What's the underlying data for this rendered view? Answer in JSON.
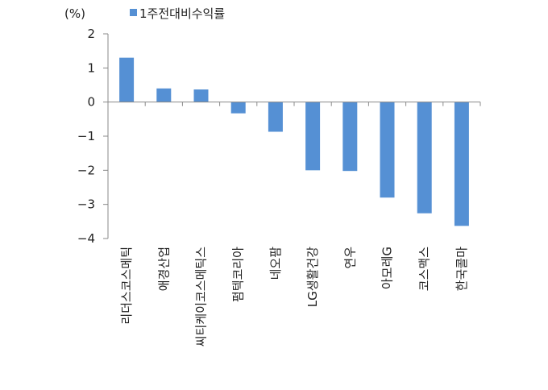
{
  "chart_data": {
    "type": "bar",
    "unit_label": "(%)",
    "categories": [
      "리더스코스메틱",
      "애경산업",
      "씨티케이코스메틱스",
      "펌텍코리아",
      "네오팜",
      "LG생활건강",
      "연우",
      "아모레G",
      "코스맥스",
      "한국콜마"
    ],
    "series": [
      {
        "name": "1주전대비수익률",
        "values": [
          1.3,
          0.4,
          0.37,
          -0.33,
          -0.87,
          -2.0,
          -2.02,
          -2.8,
          -3.26,
          -3.63
        ],
        "color": "#5590d4"
      }
    ],
    "ylim": [
      -4,
      2
    ],
    "yticks": [
      "2",
      "1",
      "0",
      "−1",
      "−2",
      "−3",
      "−4"
    ],
    "ytick_values": [
      2,
      1,
      0,
      -1,
      -2,
      -3,
      -4
    ],
    "grid": false,
    "legend_position": "top"
  }
}
